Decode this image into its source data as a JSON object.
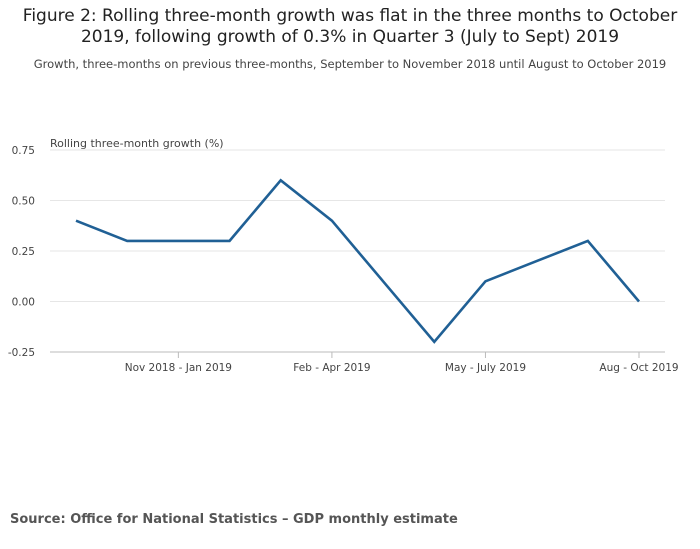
{
  "title": "Figure 2: Rolling three-month growth was flat in the three months to October 2019, following growth of 0.3% in Quarter 3 (July to Sept) 2019",
  "subtitle": "Growth, three-months on previous three-months, September to November 2018 until August to October 2019",
  "source": "Source: Office for National Statistics – GDP monthly estimate",
  "colors": {
    "line": "#206095",
    "grid": "#e6e6e6",
    "axis": "#bbbbbb"
  },
  "chart_data": {
    "type": "line",
    "title": "Figure 2: Rolling three-month growth was flat in the three months to October 2019, following growth of 0.3% in Quarter 3 (July to Sept) 2019",
    "xlabel": "",
    "ylabel": "Rolling three-month growth (%)",
    "ylim": [
      -0.25,
      0.75
    ],
    "yticks": [
      -0.25,
      0.0,
      0.25,
      0.5,
      0.75
    ],
    "ytick_labels": [
      "-0.25",
      "0.00",
      "0.25",
      "0.50",
      "0.75"
    ],
    "grid": true,
    "x": [
      0,
      1,
      2,
      3,
      4,
      5,
      6,
      7,
      8,
      9,
      10,
      11
    ],
    "xticks": [
      {
        "index": 2,
        "label": "Nov 2018 - Jan 2019"
      },
      {
        "index": 5,
        "label": "Feb - Apr 2019"
      },
      {
        "index": 8,
        "label": "May - July 2019"
      },
      {
        "index": 11,
        "label": "Aug - Oct 2019"
      }
    ],
    "series": [
      {
        "name": "Rolling three-month growth",
        "values": [
          0.4,
          0.3,
          0.3,
          0.3,
          0.6,
          0.4,
          0.1,
          -0.2,
          0.1,
          0.2,
          0.3,
          0.0
        ]
      }
    ]
  }
}
